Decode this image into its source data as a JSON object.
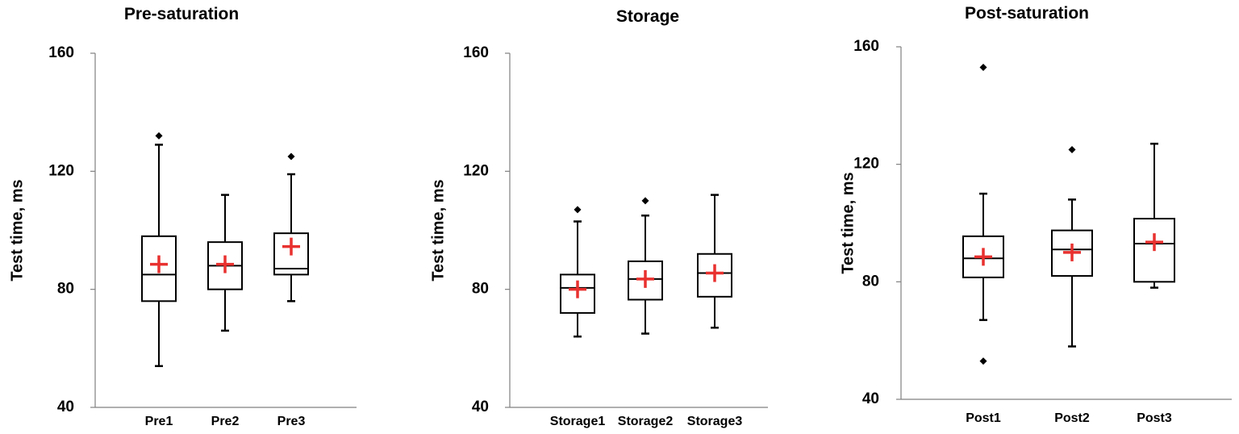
{
  "chart_data": [
    {
      "type": "box",
      "title": "Pre-saturation",
      "ylabel": "Test time, ms",
      "xlabel": "",
      "ylim": [
        40,
        160
      ],
      "yticks": [
        40,
        80,
        120,
        160
      ],
      "categories": [
        "Pre1",
        "Pre2",
        "Pre3"
      ],
      "boxes": [
        {
          "min": 54,
          "q1": 76,
          "median": 85,
          "q3": 98,
          "max": 129,
          "mean": 88.5,
          "outliers": [
            132
          ]
        },
        {
          "min": 66,
          "q1": 80,
          "median": 88,
          "q3": 96,
          "max": 112,
          "mean": 88.5,
          "outliers": []
        },
        {
          "min": 76,
          "q1": 85,
          "median": 87,
          "q3": 99,
          "max": 119,
          "mean": 94.5,
          "outliers": [
            125
          ]
        }
      ]
    },
    {
      "type": "box",
      "title": "Storage",
      "ylabel": "Test time, ms",
      "xlabel": "",
      "ylim": [
        40,
        160
      ],
      "yticks": [
        40,
        80,
        120,
        160
      ],
      "categories": [
        "Storage1",
        "Storage2",
        "Storage3"
      ],
      "boxes": [
        {
          "min": 64,
          "q1": 72,
          "median": 80.5,
          "q3": 85,
          "max": 103,
          "mean": 80,
          "outliers": [
            107
          ]
        },
        {
          "min": 65,
          "q1": 76.5,
          "median": 83.5,
          "q3": 89.5,
          "max": 105,
          "mean": 83.5,
          "outliers": [
            110
          ]
        },
        {
          "min": 67,
          "q1": 77.5,
          "median": 85.5,
          "q3": 92,
          "max": 112,
          "mean": 85.5,
          "outliers": []
        }
      ]
    },
    {
      "type": "box",
      "title": "Post-saturation",
      "ylabel": "Test time, ms",
      "xlabel": "",
      "ylim": [
        40,
        160
      ],
      "yticks": [
        40,
        80,
        120,
        160
      ],
      "categories": [
        "Post1",
        "Post2",
        "Post3"
      ],
      "boxes": [
        {
          "min": 67,
          "q1": 81.5,
          "median": 88,
          "q3": 95.5,
          "max": 110,
          "mean": 88.5,
          "outliers": [
            53,
            153
          ]
        },
        {
          "min": 58,
          "q1": 82,
          "median": 91,
          "q3": 97.5,
          "max": 108,
          "mean": 90,
          "outliers": [
            125
          ]
        },
        {
          "min": 78,
          "q1": 80,
          "median": 93,
          "q3": 101.5,
          "max": 127,
          "mean": 93.5,
          "outliers": []
        }
      ]
    }
  ],
  "colors": {
    "box": "#000000",
    "mean_marker": "#e8312f",
    "axis": "#808080"
  }
}
